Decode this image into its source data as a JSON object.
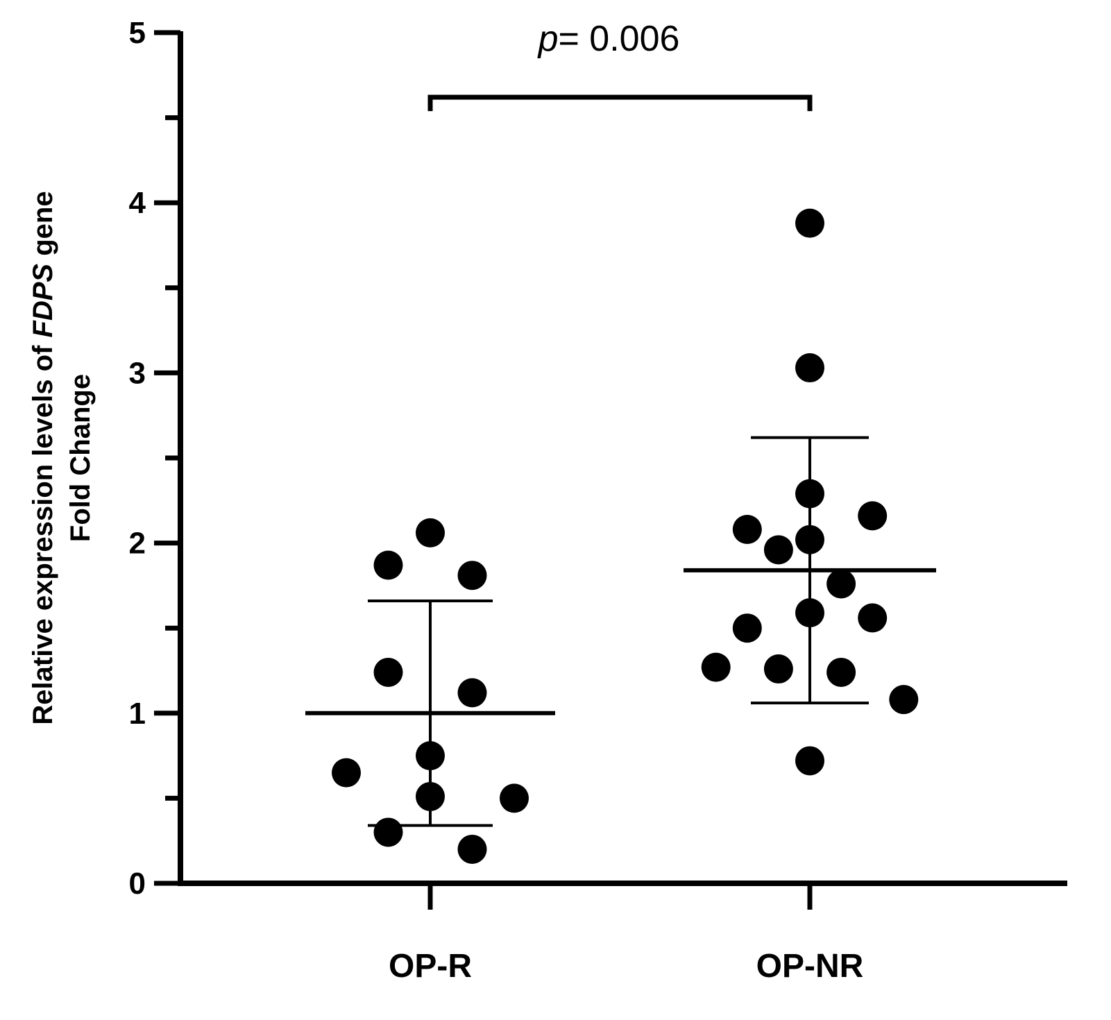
{
  "chart_data": {
    "type": "scatter",
    "title": "",
    "xlabel": "",
    "ylabel_line1_pre": "Relative expression levels of ",
    "ylabel_line1_gene": "FDPS",
    "ylabel_line1_post": " gene",
    "ylabel_line2": "Fold Change",
    "ylim": [
      0,
      5
    ],
    "yticks": [
      0,
      1,
      2,
      3,
      4,
      5
    ],
    "categories": [
      "OP-R",
      "OP-NR"
    ],
    "series": [
      {
        "name": "OP-R",
        "values": [
          2.06,
          1.87,
          1.81,
          1.24,
          1.12,
          0.75,
          0.65,
          0.51,
          0.5,
          0.3,
          0.2
        ],
        "offsets": [
          0.0,
          -0.55,
          0.55,
          -0.55,
          0.55,
          0.0,
          -1.1,
          0.0,
          1.1,
          -0.55,
          0.55
        ],
        "mean": 1.0,
        "sd_upper": 1.66,
        "sd_lower": 0.34
      },
      {
        "name": "OP-NR",
        "values": [
          3.88,
          3.03,
          2.29,
          2.16,
          2.08,
          2.02,
          1.96,
          1.76,
          1.59,
          1.56,
          1.5,
          1.27,
          1.26,
          1.24,
          1.08,
          0.72
        ],
        "offsets": [
          0.0,
          0.0,
          0.0,
          0.82,
          -0.82,
          0.0,
          -0.41,
          0.41,
          0.0,
          0.82,
          -0.82,
          -1.23,
          -0.41,
          0.41,
          1.23,
          0.0
        ],
        "mean": 1.84,
        "sd_upper": 2.62,
        "sd_lower": 1.06
      }
    ],
    "annotation": {
      "p_symbol": "p",
      "p_text": "= 0.006",
      "bracket_y": 4.62
    }
  }
}
